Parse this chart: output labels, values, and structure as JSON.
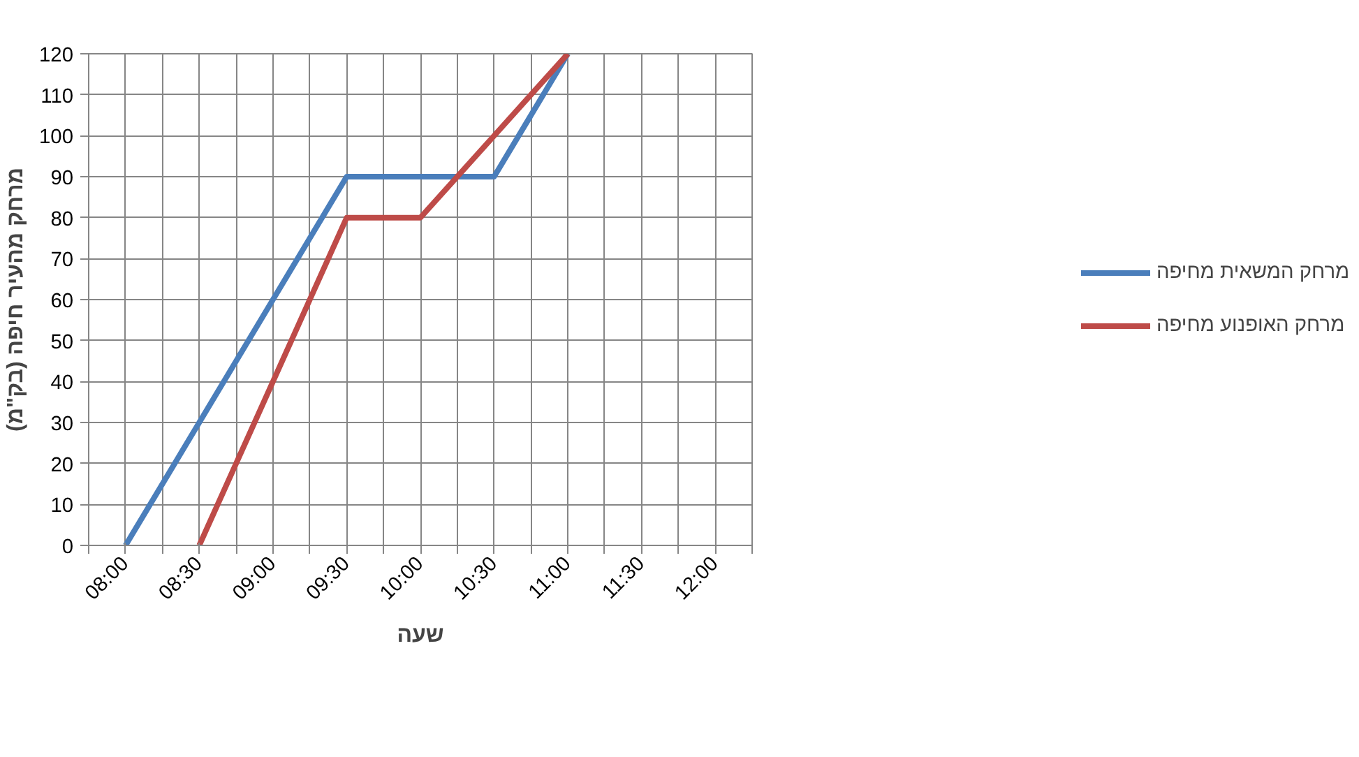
{
  "chart_data": {
    "type": "line",
    "xlabel": "שעה",
    "ylabel": "מרחק מהעיר חיפה (בק\"מ)",
    "series": [
      {
        "name": "מרחק המשאית מחיפה",
        "color": "#4a7ebb",
        "x": [
          8,
          8.5,
          9,
          9.5,
          10,
          10.5,
          11
        ],
        "values": [
          0,
          30,
          60,
          90,
          90,
          90,
          120
        ]
      },
      {
        "name": "מרחק האופנוע מחיפה",
        "color": "#be4b48",
        "x": [
          8.5,
          9,
          9.5,
          10,
          10.5,
          11
        ],
        "values": [
          0,
          40,
          80,
          80,
          100,
          120
        ]
      }
    ],
    "xlim": [
      7.75,
      12.25
    ],
    "xticks": [
      {
        "value": 7.75,
        "label": null
      },
      {
        "value": 8,
        "label": "08:00"
      },
      {
        "value": 8.25,
        "label": null
      },
      {
        "value": 8.5,
        "label": "08:30"
      },
      {
        "value": 8.75,
        "label": null
      },
      {
        "value": 9,
        "label": "09:00"
      },
      {
        "value": 9.25,
        "label": null
      },
      {
        "value": 9.5,
        "label": "09:30"
      },
      {
        "value": 9.75,
        "label": null
      },
      {
        "value": 10,
        "label": "10:00"
      },
      {
        "value": 10.25,
        "label": null
      },
      {
        "value": 10.5,
        "label": "10:30"
      },
      {
        "value": 10.75,
        "label": null
      },
      {
        "value": 11,
        "label": "11:00"
      },
      {
        "value": 11.25,
        "label": null
      },
      {
        "value": 11.5,
        "label": "11:30"
      },
      {
        "value": 11.75,
        "label": null
      },
      {
        "value": 12,
        "label": "12:00"
      },
      {
        "value": 12.25,
        "label": null
      }
    ],
    "ylim": [
      0,
      120
    ],
    "yticks": [
      0,
      10,
      20,
      30,
      40,
      50,
      60,
      70,
      80,
      90,
      100,
      110,
      120
    ],
    "grid": true,
    "legend": "right",
    "line_style": "solid"
  }
}
